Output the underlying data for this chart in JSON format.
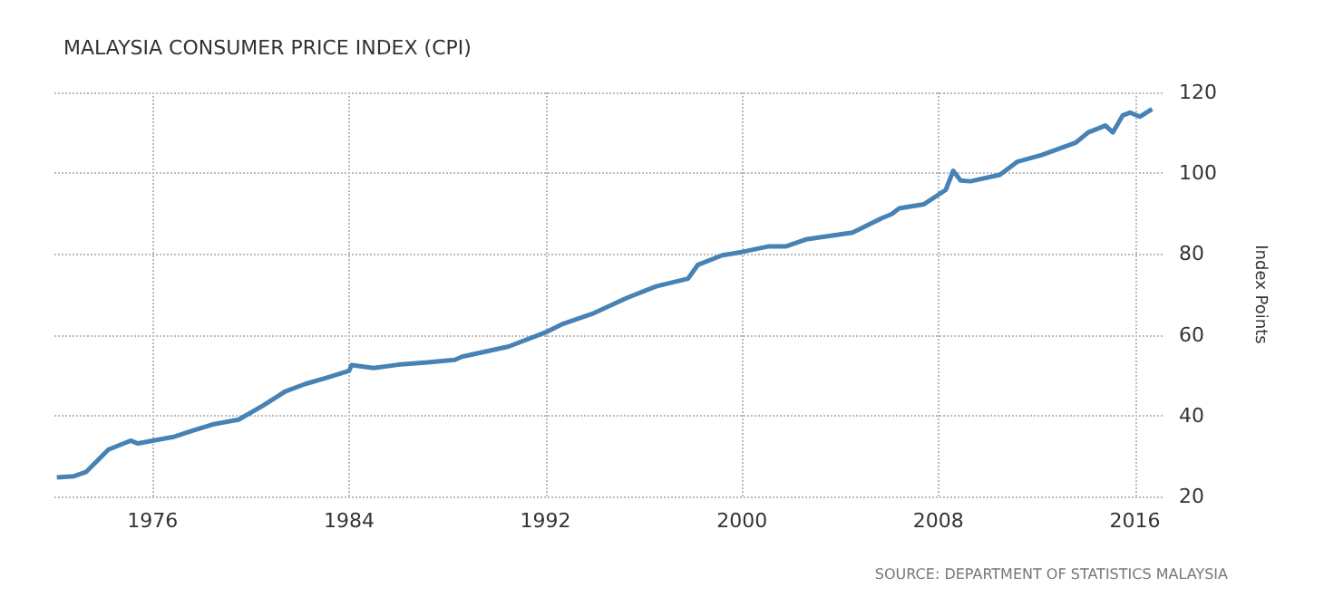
{
  "chart_data": {
    "type": "line",
    "title": "MALAYSIA CONSUMER PRICE INDEX (CPI)",
    "ylabel": "Index Points",
    "annotations": [
      "SOURCE: DEPARTMENT OF STATISTICS MALAYSIA"
    ],
    "x": [
      1972.1,
      1972.8,
      1973.3,
      1974.2,
      1975.1,
      1975.4,
      1976.0,
      1976.9,
      1977.6,
      1978.5,
      1979.5,
      1980.5,
      1981.4,
      1982.2,
      1983.1,
      1984.0,
      1984.1,
      1985.0,
      1986.0,
      1987.2,
      1988.3,
      1988.6,
      1990.5,
      1992.0,
      1992.7,
      1993.9,
      1995.3,
      1996.5,
      1997.8,
      1998.2,
      1999.2,
      2000.0,
      2001.1,
      2001.8,
      2002.6,
      2004.5,
      2005.7,
      2006.1,
      2006.4,
      2007.4,
      2008.3,
      2008.6,
      2008.9,
      2009.3,
      2010.5,
      2011.2,
      2012.2,
      2013.6,
      2014.1,
      2014.8,
      2015.1,
      2015.5,
      2015.8,
      2016.2,
      2016.7
    ],
    "series": [
      {
        "color": "#4682b4",
        "values": [
          24.7,
          25.0,
          26.1,
          31.6,
          33.8,
          33.1,
          33.8,
          34.8,
          36.2,
          37.9,
          39.0,
          42.5,
          46.0,
          47.8,
          49.4,
          51.1,
          52.5,
          51.8,
          52.6,
          53.2,
          53.8,
          54.6,
          57.1,
          60.6,
          62.7,
          65.2,
          69.1,
          72.0,
          73.9,
          77.3,
          79.7,
          80.5,
          81.9,
          81.9,
          83.6,
          85.3,
          88.9,
          89.9,
          91.3,
          92.3,
          95.9,
          100.6,
          98.2,
          98.0,
          99.6,
          102.8,
          104.5,
          107.6,
          110.1,
          111.8,
          110.1,
          114.3,
          115.0,
          114.0,
          115.9
        ]
      }
    ],
    "xlim": [
      1972,
      2017.2
    ],
    "xticks": [
      1976,
      1984,
      1992,
      2000,
      2008,
      2016
    ],
    "ylim": [
      20,
      120
    ],
    "yticks": [
      20,
      40,
      60,
      80,
      100,
      120
    ],
    "grid": true,
    "marker": "none",
    "line_style": "solid"
  }
}
